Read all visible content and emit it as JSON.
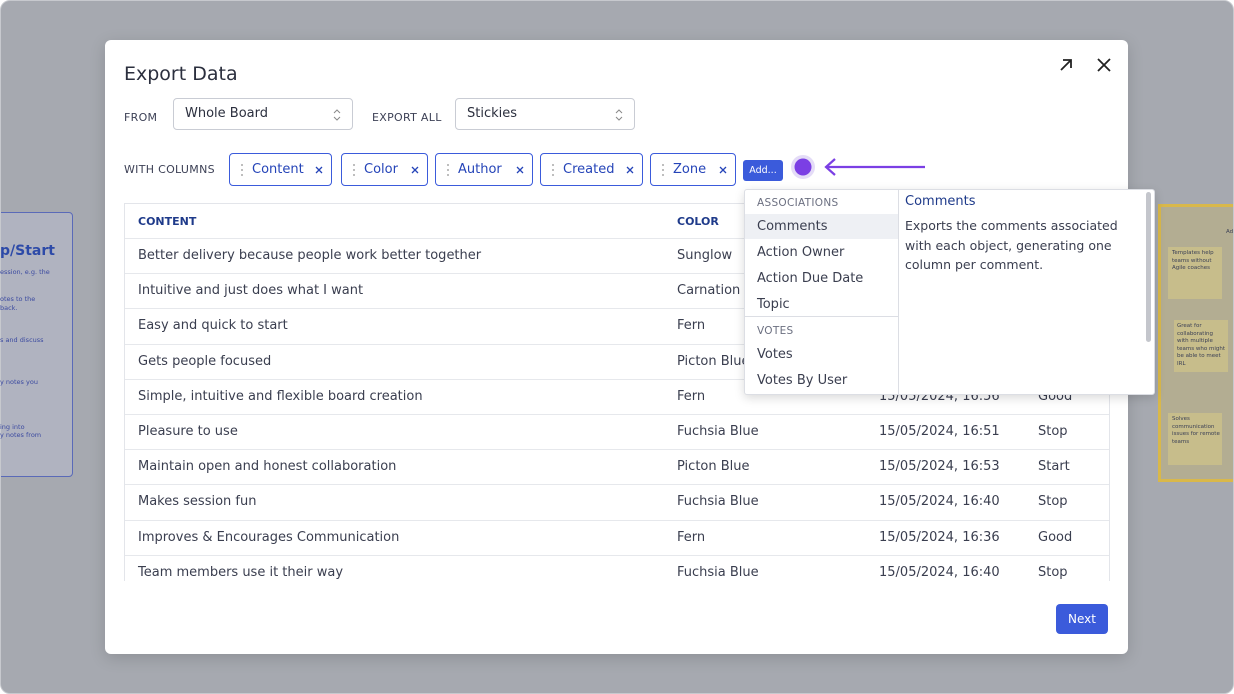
{
  "background": {
    "left_texts": [
      "p/Start",
      "ession, e.g. the",
      "otes to the",
      "back.",
      "s and discuss",
      "y notes you",
      "ing into",
      "y notes from"
    ],
    "right_texts": [
      "Ad",
      "Templates help teams without Agile coaches",
      "Great for collaborating with multiple teams who might be able to meet IRL",
      "Solves communication issues for remote teams"
    ]
  },
  "dialog": {
    "title": "Export Data",
    "from_label": "FROM",
    "from_value": "Whole Board",
    "export_all_label": "EXPORT ALL",
    "export_all_value": "Stickies",
    "with_columns_label": "WITH COLUMNS",
    "columns": [
      "Content",
      "Color",
      "Author",
      "Created",
      "Zone"
    ],
    "add_button": "Add...",
    "table": {
      "header": [
        "CONTENT",
        "COLOR"
      ],
      "rows": [
        [
          "Better delivery because people work better together",
          "Sunglow"
        ],
        [
          "Intuitive and just does what I want",
          "Carnation"
        ],
        [
          "Easy and quick to start",
          "Fern"
        ],
        [
          "Gets people focused",
          "Picton Blue"
        ],
        [
          "Simple, intuitive and flexible board creation",
          "Fern",
          "15/05/2024, 16:56",
          "Good"
        ],
        [
          "Pleasure to use",
          "Fuchsia Blue",
          "15/05/2024, 16:51",
          "Stop"
        ],
        [
          "Maintain open and honest collaboration",
          "Picton Blue",
          "15/05/2024, 16:53",
          "Start"
        ],
        [
          "Makes session fun",
          "Fuchsia Blue",
          "15/05/2024, 16:40",
          "Stop"
        ],
        [
          "Improves & Encourages Communication",
          "Fern",
          "15/05/2024, 16:36",
          "Good"
        ],
        [
          "Team members use it their way",
          "Fuchsia Blue",
          "15/05/2024, 16:40",
          "Stop"
        ]
      ]
    },
    "next_button": "Next"
  },
  "dropdown": {
    "groups": [
      {
        "label": "ASSOCIATIONS",
        "items": [
          "Comments",
          "Action Owner",
          "Action Due Date",
          "Topic"
        ]
      },
      {
        "label": "VOTES",
        "items": [
          "Votes",
          "Votes By User"
        ]
      }
    ],
    "detail": {
      "title": "Comments",
      "description": "Exports the comments associated with each object, generating one column per comment."
    }
  }
}
